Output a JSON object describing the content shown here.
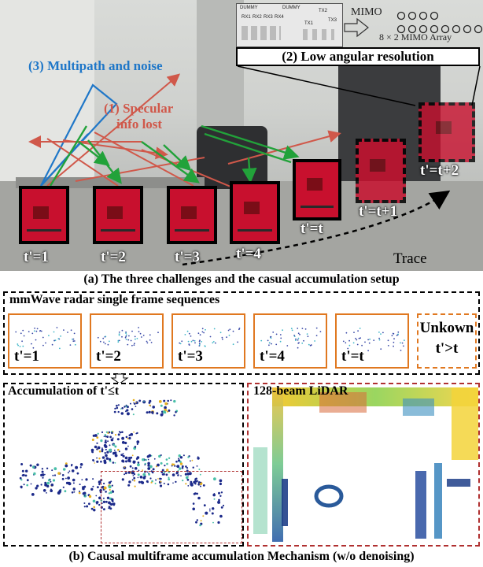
{
  "scene": {
    "antenna_layout_labels": [
      "DUMMY",
      "RX1",
      "RX2",
      "RX3",
      "RX4",
      "DUMMY",
      "TX1",
      "TX2",
      "TX3"
    ],
    "mimo_label": "MIMO",
    "mimo_array_label": "8 × 2 MIMO Array",
    "challenge2_label": "(2) Low angular resolution",
    "challenge3_label": "(3) Multipath and noise",
    "challenge1_line1": "(1) Specular",
    "challenge1_line2": "info lost",
    "frame_labels": [
      "t'=1",
      "t'=2",
      "t'=3",
      "t'=4",
      "t'=t",
      "t'=t+1",
      "t'=t+2"
    ],
    "trace_label": "Trace",
    "colors": {
      "board": "#c8102e",
      "blue": "#1f77c8",
      "red": "#d0584a",
      "green": "#22a23a",
      "orange": "#e07820"
    }
  },
  "caption_a": "(a) The three challenges and the casual accumulation setup",
  "sequence": {
    "title": "mmWave radar single frame sequences",
    "frames": [
      "t'=1",
      "t'=2",
      "t'=3",
      "t'=4",
      "t'=t"
    ],
    "unknown_line1": "Unkown",
    "unknown_line2": "t'>t"
  },
  "accumulation": {
    "title": "Accumulation of t'≤t"
  },
  "lidar": {
    "title": "128-beam LiDAR"
  },
  "caption_b": "(b) Causal multiframe accumulation  Mechanism (w/o denoising)"
}
